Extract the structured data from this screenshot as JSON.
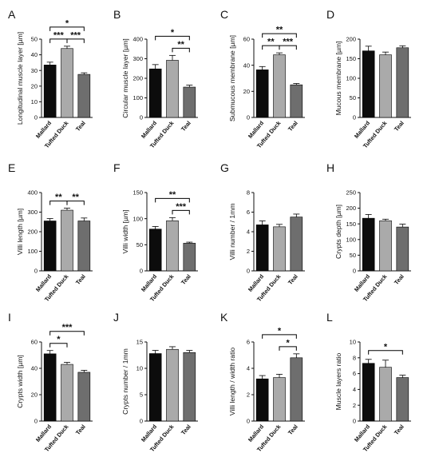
{
  "colors": {
    "mallard": "#0c0c0c",
    "tufted_duck": "#aaaaaa",
    "teal": "#6e6e6e",
    "axis": "#111111"
  },
  "chart_data": [
    {
      "panel": "A",
      "type": "bar",
      "ylabel": "Longitudinal muscle layer [µm]",
      "categories": [
        "Mallard",
        "Tufted Duck",
        "Teal"
      ],
      "values": [
        33.5,
        44,
        27.5
      ],
      "errors": [
        1.8,
        1.5,
        1
      ],
      "ylim": [
        0,
        50
      ],
      "yticks": [
        "0",
        "10",
        "20",
        "30",
        "40",
        "50"
      ],
      "grid": false,
      "significance": [
        {
          "from": 0,
          "to": 1,
          "label": "***"
        },
        {
          "from": 1,
          "to": 2,
          "label": "***"
        },
        {
          "from": 0,
          "to": 2,
          "label": "*"
        }
      ]
    },
    {
      "panel": "B",
      "type": "bar",
      "ylabel": "Circular muscle layer [µm]",
      "categories": [
        "Mallard",
        "Tufted Duck",
        "Teal"
      ],
      "values": [
        248,
        292,
        155
      ],
      "errors": [
        22,
        25,
        10
      ],
      "ylim": [
        0,
        400
      ],
      "yticks": [
        "0",
        "100",
        "200",
        "300",
        "400"
      ],
      "grid": false,
      "significance": [
        {
          "from": 1,
          "to": 2,
          "label": "**"
        },
        {
          "from": 0,
          "to": 2,
          "label": "*"
        }
      ]
    },
    {
      "panel": "C",
      "type": "bar",
      "ylabel": "Submucous membrane [µm]",
      "categories": [
        "Mallard",
        "Tufted Duck",
        "Teal"
      ],
      "values": [
        36.5,
        48,
        25
      ],
      "errors": [
        2.5,
        1.5,
        1
      ],
      "ylim": [
        0,
        60
      ],
      "yticks": [
        "0",
        "20",
        "40",
        "60"
      ],
      "grid": false,
      "significance": [
        {
          "from": 0,
          "to": 1,
          "label": "**"
        },
        {
          "from": 1,
          "to": 2,
          "label": "***"
        },
        {
          "from": 0,
          "to": 2,
          "label": "**"
        }
      ]
    },
    {
      "panel": "D",
      "type": "bar",
      "ylabel": "Mucous membrane [µm]",
      "categories": [
        "Mallard",
        "Tufted Duck",
        "Teal"
      ],
      "values": [
        170,
        160,
        178
      ],
      "errors": [
        12,
        7,
        5
      ],
      "ylim": [
        0,
        200
      ],
      "yticks": [
        "0",
        "50",
        "100",
        "150",
        "200"
      ],
      "grid": false,
      "significance": []
    },
    {
      "panel": "E",
      "type": "bar",
      "ylabel": "Villi length [µm]",
      "categories": [
        "Mallard",
        "Tufted Duck",
        "Teal"
      ],
      "values": [
        255,
        310,
        255
      ],
      "errors": [
        12,
        10,
        15
      ],
      "ylim": [
        0,
        400
      ],
      "yticks": [
        "0",
        "100",
        "200",
        "300",
        "400"
      ],
      "grid": false,
      "significance": [
        {
          "from": 0,
          "to": 1,
          "label": "**"
        },
        {
          "from": 1,
          "to": 2,
          "label": "**"
        }
      ]
    },
    {
      "panel": "F",
      "type": "bar",
      "ylabel": "Villi width [µm]",
      "categories": [
        "Mallard",
        "Tufted Duck",
        "Teal"
      ],
      "values": [
        80,
        96,
        53
      ],
      "errors": [
        5,
        6,
        2
      ],
      "ylim": [
        0,
        150
      ],
      "yticks": [
        "0",
        "50",
        "100",
        "150"
      ],
      "grid": false,
      "significance": [
        {
          "from": 1,
          "to": 2,
          "label": "***"
        },
        {
          "from": 0,
          "to": 2,
          "label": "**"
        }
      ]
    },
    {
      "panel": "G",
      "type": "bar",
      "ylabel": "Villi number / 1mm",
      "categories": [
        "Mallard",
        "Tufted Duck",
        "Teal"
      ],
      "values": [
        4.7,
        4.5,
        5.5
      ],
      "errors": [
        0.4,
        0.25,
        0.3
      ],
      "ylim": [
        0,
        8
      ],
      "yticks": [
        "0",
        "2",
        "4",
        "6",
        "8"
      ],
      "grid": false,
      "significance": []
    },
    {
      "panel": "H",
      "type": "bar",
      "ylabel": "Crypts depth [µm]",
      "categories": [
        "Mallard",
        "Tufted Duck",
        "Teal"
      ],
      "values": [
        168,
        160,
        140
      ],
      "errors": [
        12,
        5,
        9
      ],
      "ylim": [
        0,
        250
      ],
      "yticks": [
        "0",
        "50",
        "100",
        "150",
        "200",
        "250"
      ],
      "grid": false,
      "significance": []
    },
    {
      "panel": "I",
      "type": "bar",
      "ylabel": "Crypts width [µm]",
      "categories": [
        "Mallard",
        "Tufted Duck",
        "Teal"
      ],
      "values": [
        51,
        43,
        37
      ],
      "errors": [
        2.5,
        1.5,
        1.5
      ],
      "ylim": [
        0,
        60
      ],
      "yticks": [
        "0",
        "20",
        "40",
        "60"
      ],
      "grid": false,
      "significance": [
        {
          "from": 0,
          "to": 1,
          "label": "*"
        },
        {
          "from": 0,
          "to": 2,
          "label": "***"
        }
      ]
    },
    {
      "panel": "J",
      "type": "bar",
      "ylabel": "Crypts number / 1mm",
      "categories": [
        "Mallard",
        "Tufted Duck",
        "Teal"
      ],
      "values": [
        12.8,
        13.6,
        13
      ],
      "errors": [
        0.6,
        0.5,
        0.4
      ],
      "ylim": [
        0,
        15
      ],
      "yticks": [
        "0",
        "5",
        "10",
        "15"
      ],
      "grid": false,
      "significance": []
    },
    {
      "panel": "K",
      "type": "bar",
      "ylabel": "Villi length / width ratio",
      "categories": [
        "Mallard",
        "Tufted Duck",
        "Teal"
      ],
      "values": [
        3.2,
        3.3,
        4.8
      ],
      "errors": [
        0.25,
        0.25,
        0.3
      ],
      "ylim": [
        0,
        6
      ],
      "yticks": [
        "0",
        "2",
        "4",
        "6"
      ],
      "grid": false,
      "significance": [
        {
          "from": 1,
          "to": 2,
          "label": "*"
        },
        {
          "from": 0,
          "to": 2,
          "label": "*"
        }
      ]
    },
    {
      "panel": "L",
      "type": "bar",
      "ylabel": "Muscle layers ratio",
      "categories": [
        "Mallard",
        "Tufted Duck",
        "Teal"
      ],
      "values": [
        7.3,
        6.8,
        5.5
      ],
      "errors": [
        0.5,
        0.9,
        0.3
      ],
      "ylim": [
        0,
        10
      ],
      "yticks": [
        "0",
        "2",
        "4",
        "6",
        "8",
        "10"
      ],
      "grid": false,
      "significance": [
        {
          "from": 0,
          "to": 2,
          "label": "*"
        }
      ]
    }
  ]
}
